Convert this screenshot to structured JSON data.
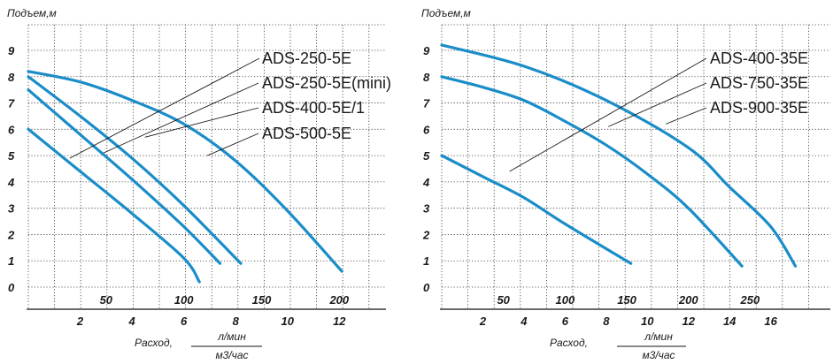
{
  "chart_data": [
    {
      "type": "line",
      "ylabel": "Подъем,м",
      "xlabel": "Расход,",
      "x_unit_top": "л/мин",
      "x_unit_bottom": "м3/час",
      "y_ticks": [
        "0",
        "1",
        "2",
        "3",
        "4",
        "5",
        "6",
        "7",
        "8",
        "9"
      ],
      "x_top_ticks": [
        {
          "value": 50,
          "label": "50"
        },
        {
          "value": 100,
          "label": "100"
        },
        {
          "value": 150,
          "label": "150"
        },
        {
          "value": 200,
          "label": "200"
        }
      ],
      "x_bottom_ticks": [
        {
          "value": 2,
          "label": "2"
        },
        {
          "value": 4,
          "label": "4"
        },
        {
          "value": 6,
          "label": "6"
        },
        {
          "value": 8,
          "label": "8"
        },
        {
          "value": 10,
          "label": "10"
        },
        {
          "value": 12,
          "label": "12"
        }
      ],
      "xlim_m3h": [
        0,
        13.8
      ],
      "ylim": [
        0,
        9.6
      ],
      "grid": true,
      "series_color": "#1a8dc8",
      "series": [
        {
          "name": "ADS-250-5E",
          "x": [
            0,
            2,
            4,
            6,
            6.6
          ],
          "y": [
            6.0,
            4.4,
            2.8,
            1.1,
            0.2
          ]
        },
        {
          "name": "ADS-250-5E(mini)",
          "x": [
            0,
            2,
            4,
            6,
            7.4
          ],
          "y": [
            7.5,
            5.8,
            4.1,
            2.3,
            0.9
          ]
        },
        {
          "name": "ADS-400-5E/1",
          "x": [
            0,
            2,
            4,
            6,
            8.2
          ],
          "y": [
            8.0,
            6.5,
            4.9,
            3.1,
            0.9
          ]
        },
        {
          "name": "ADS-500-5E",
          "x": [
            0,
            2,
            4,
            6,
            8,
            10,
            12.1
          ],
          "y": [
            8.2,
            7.8,
            7.1,
            6.2,
            4.8,
            2.9,
            0.6
          ]
        }
      ],
      "labels": [
        "ADS-250-5E",
        "ADS-250-5E(mini)",
        "ADS-400-5E/1",
        "ADS-500-5E"
      ],
      "leader_x": [
        1.6,
        2.9,
        4.5,
        6.9
      ],
      "leader_y": [
        4.9,
        5.1,
        5.7,
        5.0
      ]
    },
    {
      "type": "line",
      "ylabel": "Подъем,м",
      "xlabel": "Расход,",
      "x_unit_top": "л/мин",
      "x_unit_bottom": "м3/час",
      "y_ticks": [
        "0",
        "1",
        "2",
        "3",
        "4",
        "5",
        "6",
        "7",
        "8",
        "9"
      ],
      "x_top_ticks": [
        {
          "value": 50,
          "label": "50"
        },
        {
          "value": 100,
          "label": "100"
        },
        {
          "value": 150,
          "label": "150"
        },
        {
          "value": 200,
          "label": "200"
        },
        {
          "value": 250,
          "label": "250"
        }
      ],
      "x_bottom_ticks": [
        {
          "value": 2,
          "label": "2"
        },
        {
          "value": 4,
          "label": "4"
        },
        {
          "value": 6,
          "label": "6"
        },
        {
          "value": 8,
          "label": "8"
        },
        {
          "value": 10,
          "label": "10"
        },
        {
          "value": 12,
          "label": "12"
        },
        {
          "value": 14,
          "label": "14"
        },
        {
          "value": 16,
          "label": "16"
        }
      ],
      "xlim_m3h": [
        0,
        18.9
      ],
      "ylim": [
        0,
        9.6
      ],
      "grid": true,
      "series_color": "#1a8dc8",
      "series": [
        {
          "name": "ADS-400-35E",
          "x": [
            0,
            2,
            4,
            6,
            9.2
          ],
          "y": [
            5.0,
            4.2,
            3.4,
            2.4,
            0.9
          ]
        },
        {
          "name": "ADS-750-35E",
          "x": [
            0,
            2,
            4,
            6,
            8,
            10,
            12,
            14.6
          ],
          "y": [
            8.0,
            7.6,
            7.1,
            6.3,
            5.4,
            4.3,
            3.0,
            0.8
          ]
        },
        {
          "name": "ADS-900-35E",
          "x": [
            0,
            4,
            8,
            12,
            14,
            16,
            17.2
          ],
          "y": [
            9.2,
            8.4,
            7.1,
            5.3,
            3.8,
            2.3,
            0.8
          ]
        }
      ],
      "labels": [
        "ADS-400-35E",
        "ADS-750-35E",
        "ADS-900-35E"
      ],
      "leader_x": [
        3.3,
        8.1,
        10.9
      ],
      "leader_y": [
        4.4,
        6.1,
        6.2
      ]
    }
  ]
}
